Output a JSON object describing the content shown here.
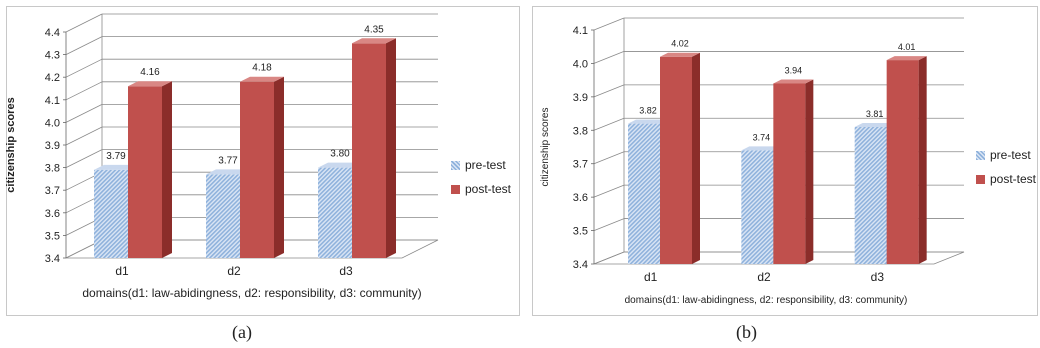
{
  "chart_data": [
    {
      "type": "bar",
      "panel_label": "(a)",
      "categories": [
        "d1",
        "d2",
        "d3"
      ],
      "series": [
        {
          "name": "pre-test",
          "values": [
            3.79,
            3.77,
            3.8
          ],
          "labels": [
            "3.79",
            "3.77",
            "3.80"
          ],
          "color": "#9bbbe0"
        },
        {
          "name": "post-test",
          "values": [
            4.16,
            4.18,
            4.35
          ],
          "labels": [
            "4.16",
            "4.18",
            "4.35"
          ],
          "color": "#c0504d"
        }
      ],
      "ylim": [
        3.4,
        4.4
      ],
      "yticks": [
        "3.4",
        "3.5",
        "3.6",
        "3.7",
        "3.8",
        "3.9",
        "4.0",
        "4.1",
        "4.2",
        "4.3",
        "4.4"
      ],
      "ylabel": "citizenship scores",
      "xlabel": "domains(d1: law-abidingness, d2: responsibility, d3: community)",
      "grid": true,
      "legend_position": "right"
    },
    {
      "type": "bar",
      "panel_label": "(b)",
      "categories": [
        "d1",
        "d2",
        "d3"
      ],
      "series": [
        {
          "name": "pre-test",
          "values": [
            3.82,
            3.74,
            3.81
          ],
          "labels": [
            "3.82",
            "3.74",
            "3.81"
          ],
          "color": "#9bbbe0"
        },
        {
          "name": "post-test",
          "values": [
            4.02,
            3.94,
            4.01
          ],
          "labels": [
            "4.02",
            "3.94",
            "4.01"
          ],
          "color": "#c0504d"
        }
      ],
      "ylim": [
        3.4,
        4.1
      ],
      "yticks": [
        "3.4",
        "3.5",
        "3.6",
        "3.7",
        "3.8",
        "3.9",
        "4.0",
        "4.1"
      ],
      "ylabel": "citizenship scores",
      "xlabel": "domains(d1:  law-abidingness,  d2:  responsibility,  d3:  community)",
      "grid": true,
      "legend_position": "right"
    }
  ]
}
